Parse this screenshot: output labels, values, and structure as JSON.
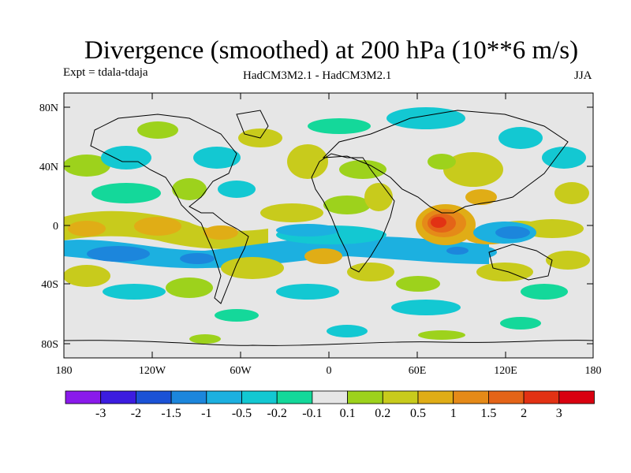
{
  "header": {
    "title": "Divergence (smoothed) at 200 hPa (10**6 m/s)",
    "experiment": "Expt = tdala-tdaja",
    "models": "HadCM3M2.1 - HadCM3M2.1",
    "season": "JJA"
  },
  "map": {
    "lat_ticks": [
      "80N",
      "40N",
      "0",
      "40S",
      "80S"
    ],
    "lon_ticks": [
      "180",
      "120W",
      "60W",
      "0",
      "60E",
      "120E",
      "180"
    ]
  },
  "colorbar": {
    "labels": [
      "-3",
      "-2",
      "-1.5",
      "-1",
      "-0.5",
      "-0.2",
      "-0.1",
      "0.1",
      "0.2",
      "0.5",
      "1",
      "1.5",
      "2",
      "3"
    ],
    "colors": [
      "#8a1aeb",
      "#3c1ce0",
      "#1b52d6",
      "#1c86dc",
      "#1cb0e0",
      "#13c8d2",
      "#14d89a",
      "#e6e6e6",
      "#9dd21c",
      "#c8cb1c",
      "#e0ad16",
      "#e58a18",
      "#e46418",
      "#e23214",
      "#d90010"
    ]
  },
  "legend_colors": {
    "neutral": "#e6e6e6",
    "ocean_bg": "#e6e6e6"
  }
}
